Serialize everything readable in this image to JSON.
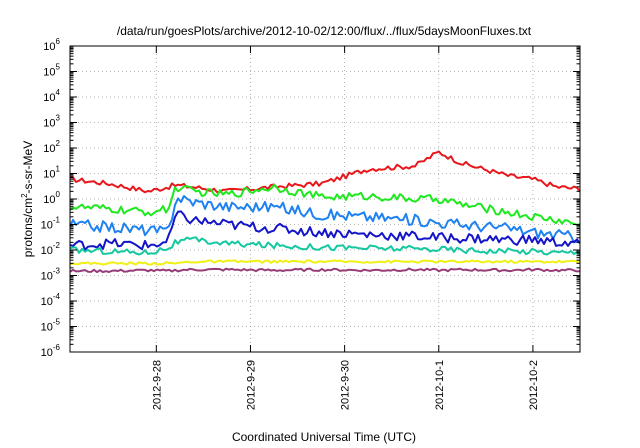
{
  "chart_data": {
    "type": "line",
    "title": "/data/run/goesPlots/archive/2012-10-02/12:00/flux/../flux/5daysMoonFluxes.txt",
    "xlabel": "Coordinated Universal Time (UTC)",
    "ylabel": {
      "prefix": "protons/cm",
      "sup": "2",
      "suffix": "-s-sr-MeV"
    },
    "yscale": "log",
    "ylim": [
      1e-06,
      1000000.0
    ],
    "xlim": [
      "2012-09-27 02:00",
      "2012-10-02 12:00"
    ],
    "grid": true,
    "legend": "none",
    "x_ticks": [
      "2012-9-28",
      "2012-9-29",
      "2012-9-30",
      "2012-10-1",
      "2012-10-2"
    ],
    "y_ticks": [
      {
        "base": "10",
        "exp": "6"
      },
      {
        "base": "10",
        "exp": "5"
      },
      {
        "base": "10",
        "exp": "4"
      },
      {
        "base": "10",
        "exp": "3"
      },
      {
        "base": "10",
        "exp": "2"
      },
      {
        "base": "10",
        "exp": "1"
      },
      {
        "base": "10",
        "exp": "0"
      },
      {
        "base": "10",
        "exp": "-1"
      },
      {
        "base": "10",
        "exp": "-2"
      },
      {
        "base": "10",
        "exp": "-3"
      },
      {
        "base": "10",
        "exp": "-4"
      },
      {
        "base": "10",
        "exp": "-5"
      },
      {
        "base": "10",
        "exp": "-6"
      }
    ],
    "x": [
      "2012-09-27 02:00",
      "2012-09-27 12:00",
      "2012-09-27 22:00",
      "2012-09-28 03:00",
      "2012-09-28 05:00",
      "2012-09-28 09:00",
      "2012-09-28 18:00",
      "2012-09-29 06:00",
      "2012-09-29 18:00",
      "2012-09-30 06:00",
      "2012-09-30 18:00",
      "2012-10-01 00:00",
      "2012-10-01 06:00",
      "2012-10-01 18:00",
      "2012-10-02 00:00",
      "2012-10-02 06:00",
      "2012-10-02 12:00"
    ],
    "series": [
      {
        "color": "#e8171b",
        "values": [
          6,
          4,
          2,
          3,
          3.5,
          3,
          2,
          3,
          4,
          15,
          20,
          70,
          25,
          8,
          6,
          3,
          2.5
        ]
      },
      {
        "color": "#1ee81e",
        "values": [
          0.5,
          0.4,
          0.3,
          0.4,
          3,
          2,
          1.5,
          3,
          1.2,
          1.3,
          1.0,
          1.0,
          0.6,
          0.3,
          0.2,
          0.15,
          0.1
        ]
      },
      {
        "color": "#1e82f0",
        "values": [
          0.1,
          0.08,
          0.06,
          0.05,
          1.2,
          0.8,
          0.5,
          0.5,
          0.25,
          0.2,
          0.15,
          0.12,
          0.1,
          0.07,
          0.05,
          0.04,
          0.03
        ]
      },
      {
        "color": "#1414c8",
        "values": [
          0.015,
          0.018,
          0.015,
          0.02,
          0.25,
          0.15,
          0.1,
          0.07,
          0.05,
          0.04,
          0.035,
          0.03,
          0.03,
          0.025,
          0.025,
          0.02,
          0.018
        ]
      },
      {
        "color": "#14c8a0",
        "values": [
          0.01,
          0.009,
          0.008,
          0.012,
          0.02,
          0.025,
          0.018,
          0.015,
          0.013,
          0.012,
          0.011,
          0.011,
          0.01,
          0.009,
          0.009,
          0.008,
          0.008
        ]
      },
      {
        "color": "#f0f014",
        "values": [
          0.003,
          0.003,
          0.003,
          0.003,
          0.003,
          0.0035,
          0.0035,
          0.0035,
          0.0035,
          0.0035,
          0.0035,
          0.0035,
          0.0035,
          0.0035,
          0.0035,
          0.0035,
          0.0035
        ]
      },
      {
        "color": "#963c78",
        "values": [
          0.0015,
          0.0015,
          0.0016,
          0.0015,
          0.0016,
          0.0017,
          0.0017,
          0.0016,
          0.0017,
          0.0016,
          0.0017,
          0.0016,
          0.0017,
          0.0016,
          0.0017,
          0.0016,
          0.0016
        ]
      }
    ]
  }
}
